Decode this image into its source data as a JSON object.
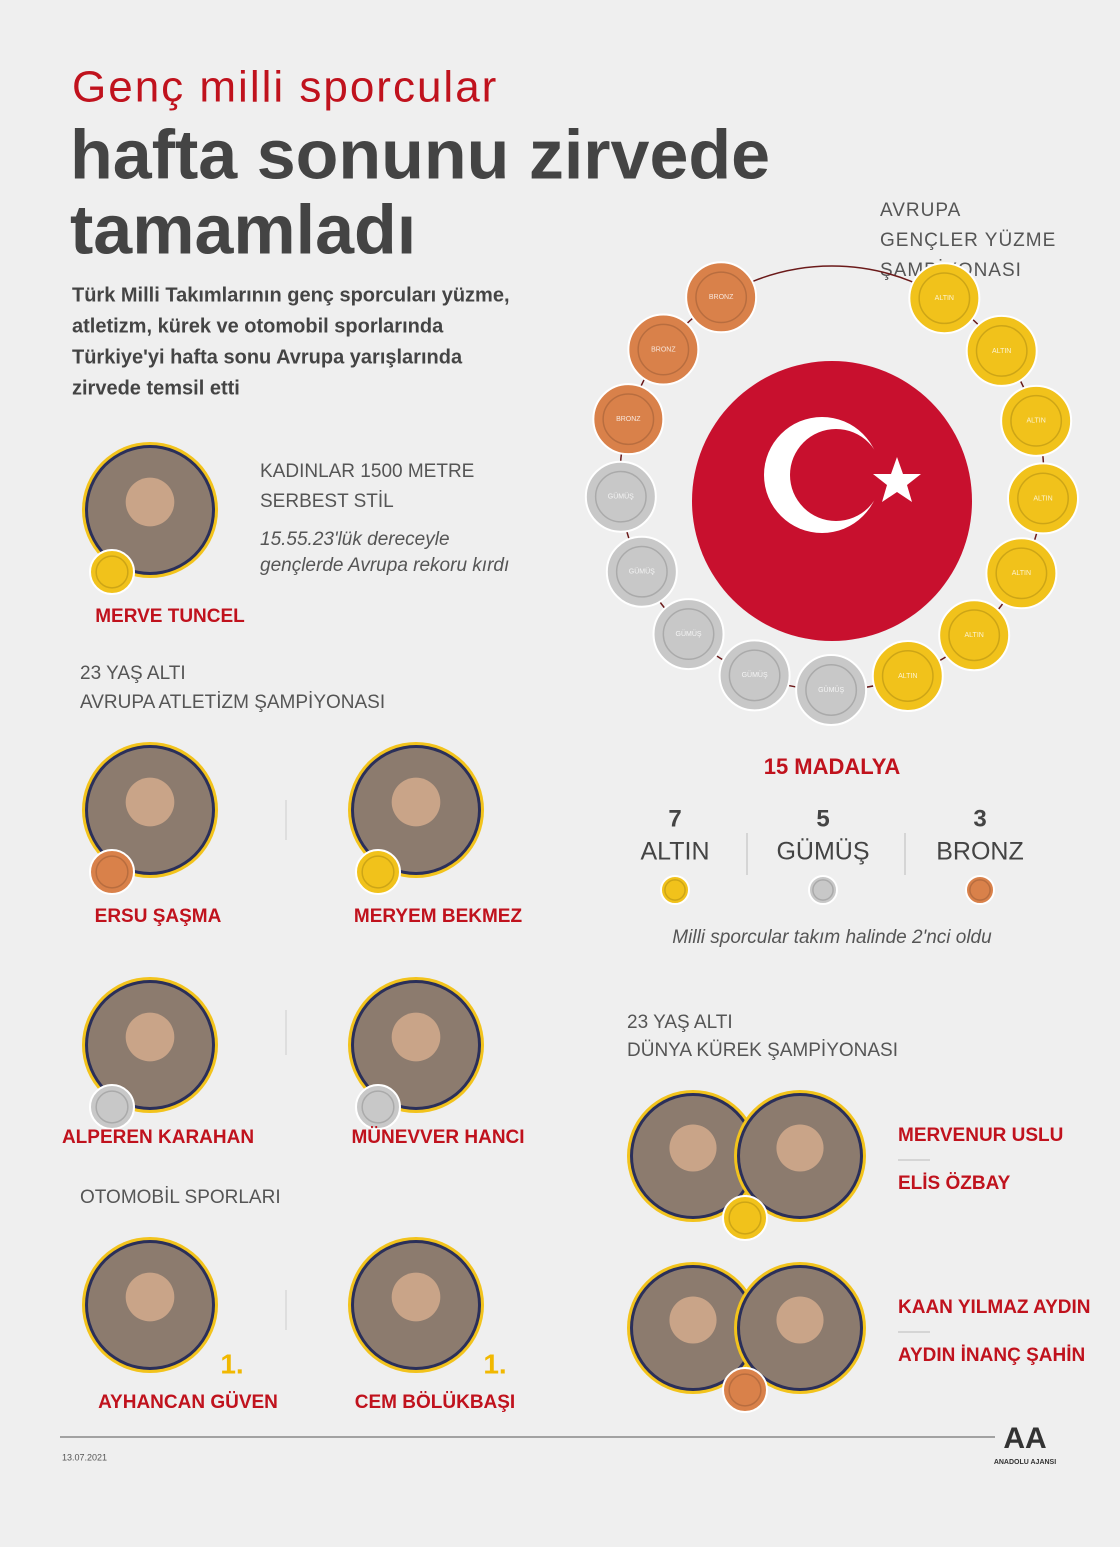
{
  "header": {
    "kicker": "Genç milli sporcular",
    "title_lines": [
      "hafta sonunu zirvede",
      "tamamladı"
    ],
    "intro_lines": [
      "Türk Milli Takımlarının genç sporcuları yüzme,",
      "atletizm, kürek ve otomobil sporlarında",
      "Türkiye'yi hafta sonu Avrupa yarışlarında",
      "zirvede temsil etti"
    ]
  },
  "medal_colors": {
    "gold": "#f1c21b",
    "silver": "#c8c8c8",
    "bronze": "#d9814a"
  },
  "swimming": {
    "title_lines": [
      "AVRUPA",
      "GENÇLER YÜZME",
      "ŞAMPİYONASI"
    ],
    "event_lines": [
      "KADINLAR 1500 METRE",
      "SERBEST STİL"
    ],
    "note_lines": [
      "15.55.23'lük dereceyle",
      "gençlerde Avrupa rekoru kırdı"
    ],
    "athlete": {
      "name": "MERVE TUNCEL",
      "medal": "gold"
    }
  },
  "medals": {
    "total_label": "15 MADALYA",
    "counts": [
      {
        "count": 7,
        "label": "ALTIN",
        "coin_text": "ALTIN",
        "medal": "gold"
      },
      {
        "count": 5,
        "label": "GÜMÜŞ",
        "coin_text": "GÜMÜŞ",
        "medal": "silver"
      },
      {
        "count": 3,
        "label": "BRONZ",
        "coin_text": "BRONZ",
        "medal": "bronze"
      }
    ],
    "note": "Milli sporcular takım halinde 2'nci oldu"
  },
  "athletics": {
    "title_lines": [
      "23 YAŞ ALTI",
      "AVRUPA ATLETİZM ŞAMPİYONASI"
    ],
    "athletes": [
      {
        "name": "ERSU ŞAŞMA",
        "medal": "bronze"
      },
      {
        "name": "MERYEM BEKMEZ",
        "medal": "gold"
      },
      {
        "name": "ALPEREN KARAHAN",
        "medal": "silver"
      },
      {
        "name": "MÜNEVVER HANCI",
        "medal": "silver"
      }
    ]
  },
  "motorsport": {
    "title": "OTOMOBİL SPORLARI",
    "athletes": [
      {
        "name": "AYHANCAN GÜVEN",
        "rank": "1."
      },
      {
        "name": "CEM BÖLÜKBAŞI",
        "rank": "1."
      }
    ]
  },
  "rowing": {
    "title_lines": [
      "23 YAŞ ALTI",
      "DÜNYA KÜREK ŞAMPİYONASI"
    ],
    "crews": [
      {
        "names": [
          "MERVENUR USLU",
          "ELİS ÖZBAY"
        ],
        "medal": "gold"
      },
      {
        "names": [
          "KAAN YILMAZ AYDIN",
          "AYDIN İNANÇ ŞAHİN"
        ],
        "medal": "bronze"
      }
    ]
  },
  "footer": {
    "date": "13.07.2021",
    "logo": "AA",
    "agency": "ANADOLU AJANSI"
  }
}
